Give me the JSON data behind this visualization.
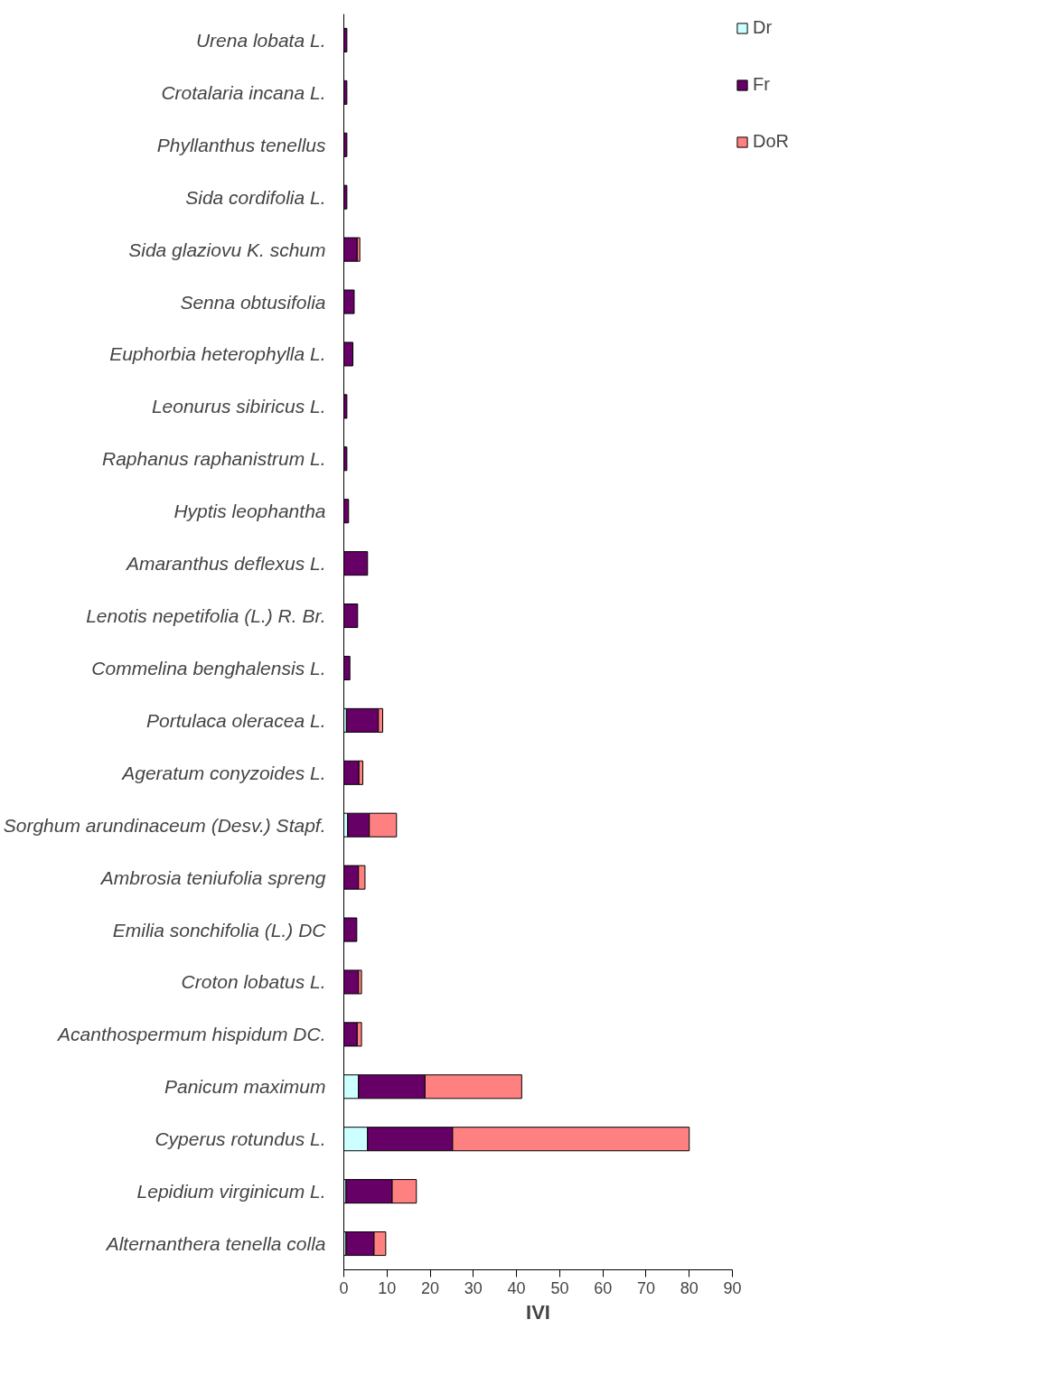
{
  "chart_data": {
    "type": "bar",
    "orientation": "horizontal",
    "stacked": true,
    "xlabel": "IVI",
    "categories": [
      "Urena lobata L.",
      "Crotalaria incana L.",
      "Phyllanthus tenellus",
      "Sida cordifolia L.",
      "Sida glaziovu K. schum",
      "Senna obtusifolia",
      "Euphorbia heterophylla L.",
      "Leonurus sibiricus L.",
      "Raphanus raphanistrum L.",
      "Hyptis leophantha",
      "Amaranthus deflexus L.",
      "Lenotis nepetifolia (L.) R. Br.",
      "Commelina benghalensis L.",
      "Portulaca oleracea L.",
      "Ageratum conyzoides L.",
      "Sorghum arundinaceum (Desv.) Stapf.",
      "Ambrosia teniufolia spreng",
      "Emilia sonchifolia (L.) DC",
      "Croton lobatus L.",
      "Acanthospermum hispidum DC.",
      "Panicum maximum",
      "Cyperus rotundus L.",
      "Lepidium virginicum L.",
      "Alternanthera tenella colla"
    ],
    "series": [
      {
        "name": "Dr",
        "color": "#ccffff",
        "values": [
          0,
          0,
          0,
          0,
          0,
          0,
          0,
          0,
          0,
          0,
          0,
          0,
          0,
          0.6,
          0,
          0.9,
          0,
          0,
          0,
          0,
          3.4,
          5.5,
          0.5,
          0.5
        ]
      },
      {
        "name": "Fr",
        "color": "#660066",
        "values": [
          0.7,
          0.7,
          0.7,
          0.7,
          3.1,
          2.4,
          2.1,
          0.7,
          0.7,
          1.1,
          5.5,
          3.2,
          1.4,
          7.4,
          3.5,
          5.0,
          3.4,
          3.0,
          3.4,
          3.1,
          15.4,
          19.7,
          10.7,
          6.5
        ]
      },
      {
        "name": "DoR",
        "color": "#ff8080",
        "values": [
          0,
          0,
          0,
          0,
          0.6,
          0,
          0,
          0,
          0,
          0,
          0,
          0,
          0,
          1.0,
          0.9,
          6.3,
          1.5,
          0,
          0.7,
          1.0,
          22.4,
          54.8,
          5.6,
          2.7
        ]
      }
    ],
    "xlim": [
      0,
      90
    ],
    "xticks": [
      0,
      10,
      20,
      30,
      40,
      50,
      60,
      70,
      80,
      90
    ],
    "legend": "right",
    "grid": false
  }
}
